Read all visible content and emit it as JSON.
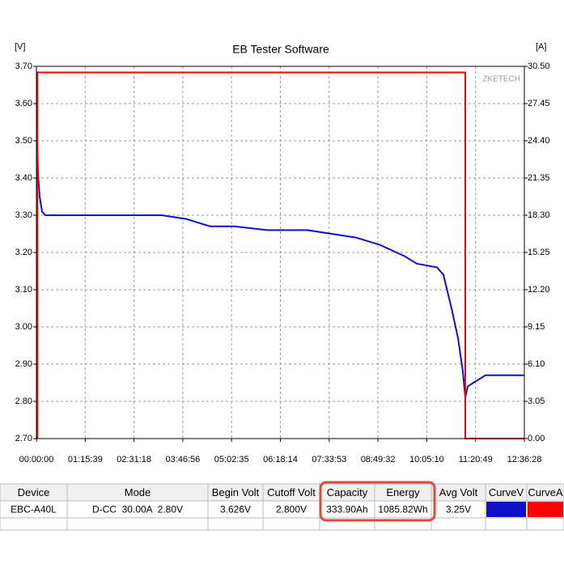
{
  "chart_data": {
    "type": "line",
    "title": "EB Tester Software",
    "y_label": "[V]",
    "y2_label": "[A]",
    "watermark": "ZKETECH",
    "xlim": [
      0,
      45388
    ],
    "xticks": [
      {
        "value": 0,
        "label": "00:00:00"
      },
      {
        "value": 4539,
        "label": "01:15:39"
      },
      {
        "value": 9078,
        "label": "02:31:18"
      },
      {
        "value": 13616,
        "label": "03:46:56"
      },
      {
        "value": 18155,
        "label": "05:02:35"
      },
      {
        "value": 22694,
        "label": "06:18:14"
      },
      {
        "value": 27233,
        "label": "07:33:53"
      },
      {
        "value": 31772,
        "label": "08:49:32"
      },
      {
        "value": 36310,
        "label": "10:05:10"
      },
      {
        "value": 40849,
        "label": "11:20:49"
      },
      {
        "value": 45388,
        "label": "12:36:28"
      }
    ],
    "ylim": [
      2.7,
      3.7
    ],
    "yticks": [
      {
        "value": 2.7,
        "label": "2.70"
      },
      {
        "value": 2.8,
        "label": "2.80"
      },
      {
        "value": 2.9,
        "label": "2.90"
      },
      {
        "value": 3.0,
        "label": "3.00"
      },
      {
        "value": 3.1,
        "label": "3.10"
      },
      {
        "value": 3.2,
        "label": "3.20"
      },
      {
        "value": 3.3,
        "label": "3.30"
      },
      {
        "value": 3.4,
        "label": "3.40"
      },
      {
        "value": 3.5,
        "label": "3.50"
      },
      {
        "value": 3.6,
        "label": "3.60"
      },
      {
        "value": 3.7,
        "label": "3.70"
      }
    ],
    "y2lim": [
      0,
      30.5
    ],
    "y2ticks": [
      {
        "value": 0,
        "label": "0.00"
      },
      3.05,
      {
        "value": 6.1,
        "label": "6.10"
      },
      9.15,
      {
        "value": 12.2,
        "label": "12.20"
      },
      15.25,
      {
        "value": 18.3,
        "label": "18.30"
      },
      21.35,
      {
        "value": 24.4,
        "label": "24.40"
      },
      27.45,
      {
        "value": 30.5,
        "label": "30.50"
      }
    ],
    "grid": true,
    "series": [
      {
        "name": "CurveV",
        "color": "#1010cc",
        "axis": "y",
        "x": [
          75,
          151,
          301,
          527,
          828,
          1129,
          7903,
          11667,
          13925,
          16183,
          18441,
          21452,
          25215,
          27473,
          29732,
          31990,
          34248,
          35377,
          37259,
          37861,
          38614,
          39216,
          39667,
          39893,
          40119,
          40646,
          41775,
          43280,
          45388
        ],
        "values": [
          3.49,
          3.41,
          3.35,
          3.31,
          3.3,
          3.3,
          3.3,
          3.3,
          3.29,
          3.27,
          3.27,
          3.26,
          3.26,
          3.25,
          3.24,
          3.22,
          3.19,
          3.17,
          3.16,
          3.14,
          3.05,
          2.97,
          2.88,
          2.81,
          2.84,
          2.85,
          2.87,
          2.87,
          2.87
        ]
      },
      {
        "name": "CurveA",
        "color": "#ff0000",
        "axis": "y2",
        "x": [
          75,
          75,
          39893,
          39893,
          45388
        ],
        "values": [
          0,
          30,
          30,
          0,
          0
        ]
      }
    ]
  },
  "table": {
    "headers": [
      "Device",
      "Mode",
      "Begin Volt",
      "Cutoff Volt",
      "Capacity",
      "Energy",
      "Avg Volt",
      "CurveV",
      "CurveA"
    ],
    "rows": [
      [
        "EBC-A40L",
        "D-CC  30.00A  2.80V",
        "3.626V",
        "2.800V",
        "333.90Ah",
        "1085.82Wh",
        "3.25V"
      ]
    ]
  }
}
